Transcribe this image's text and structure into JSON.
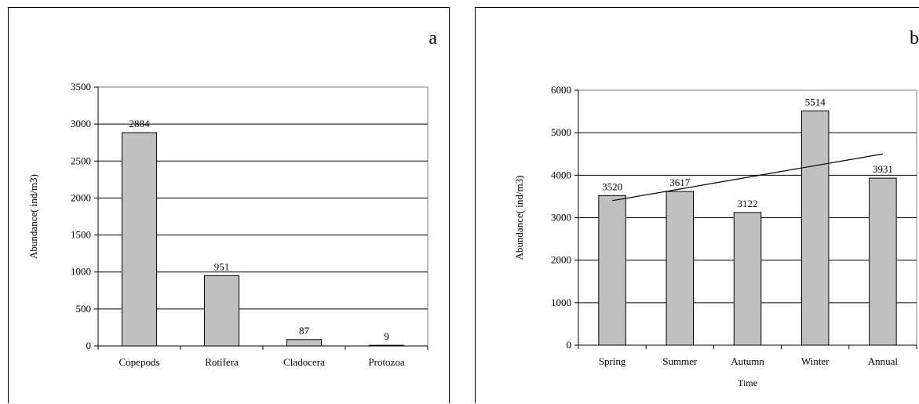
{
  "panels": [
    {
      "letter": "a"
    },
    {
      "letter": "b"
    }
  ],
  "chart_data": [
    {
      "type": "bar",
      "title": "",
      "xlabel": "",
      "ylabel": "Abundance( ind/m3)",
      "categories": [
        "Copepods",
        "Rotifera",
        "Cladocera",
        "Protozoa"
      ],
      "values": [
        2884,
        951,
        87,
        9
      ],
      "data_labels": [
        "2884",
        "951",
        "87",
        "9"
      ],
      "ylim": [
        0,
        3500
      ],
      "yticks": [
        0,
        500,
        1000,
        1500,
        2000,
        2500,
        3000,
        3500
      ],
      "grid": true,
      "bar_color": "#c0c0c0",
      "legend": "none"
    },
    {
      "type": "bar",
      "title": "",
      "xlabel": "Time",
      "ylabel": "Abundance( ind/m3)",
      "categories": [
        "Spring",
        "Summer",
        "Autumn",
        "Winter",
        "Annual"
      ],
      "values": [
        3520,
        3617,
        3122,
        5514,
        3931
      ],
      "data_labels": [
        "3520",
        "3617",
        "3122",
        "5514",
        "3931"
      ],
      "ylim": [
        0,
        6000
      ],
      "yticks": [
        0,
        1000,
        2000,
        3000,
        4000,
        5000,
        6000
      ],
      "grid": true,
      "bar_color": "#c0c0c0",
      "legend": "none",
      "trendline": {
        "type": "linear",
        "start": 3400,
        "end": 4500
      }
    }
  ]
}
